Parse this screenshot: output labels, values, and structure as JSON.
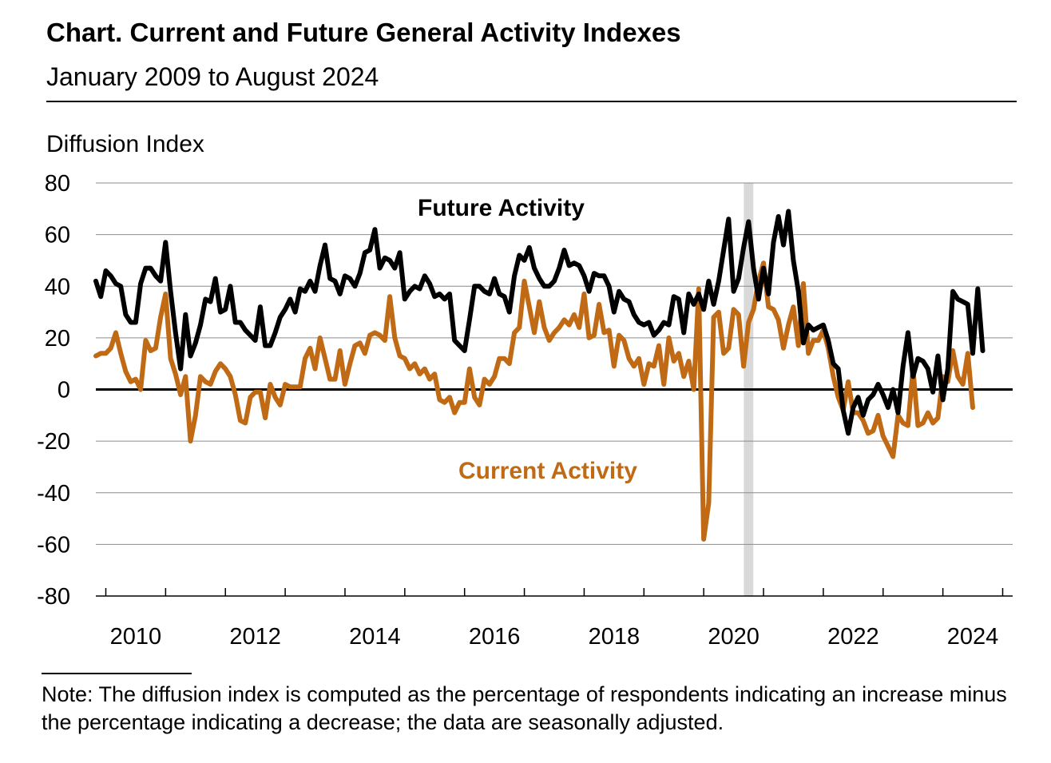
{
  "header": {
    "title": "Chart. Current and Future General Activity Indexes",
    "subtitle": "January 2009 to August 2024"
  },
  "note": "Note: The diffusion index is computed as the percentage of respondents indicating an increase minus the percentage indicating a decrease; the data are seasonally adjusted.",
  "colors": {
    "future": "#000000",
    "current": "#c06a15",
    "recession_band": "#d9d9d9",
    "grid": "#8c8c8c"
  },
  "chart_data": {
    "type": "line",
    "title": "Chart. Current and Future General Activity Indexes",
    "subtitle": "January 2009 to August 2024",
    "ylabel": "Diffusion Index",
    "xlabel": "",
    "ylim": [
      -80,
      80
    ],
    "yticks": [
      80,
      60,
      40,
      20,
      0,
      -20,
      -40,
      -60,
      -80
    ],
    "xlim": [
      2009.333,
      2024.667
    ],
    "xticks": [
      {
        "value": 2010,
        "label": "2010"
      },
      {
        "value": 2012,
        "label": "2012"
      },
      {
        "value": 2014,
        "label": "2014"
      },
      {
        "value": 2016,
        "label": "2016"
      },
      {
        "value": 2018,
        "label": "2018"
      },
      {
        "value": 2020,
        "label": "2020"
      },
      {
        "value": 2022,
        "label": "2022"
      },
      {
        "value": 2024,
        "label": "2024"
      }
    ],
    "x_start": 2009.333,
    "x_step_months": 1,
    "shaded_region": {
      "start": 2020.17,
      "end": 2020.33
    },
    "grid": true,
    "series": [
      {
        "name": "Future Activity",
        "label_text": "Future Activity",
        "color": "#000000",
        "values": [
          42,
          36,
          46,
          44,
          41,
          40,
          29,
          26,
          26,
          41,
          47,
          47,
          44,
          42,
          57,
          38,
          22,
          8,
          29,
          13,
          18,
          25,
          35,
          34,
          43,
          30,
          31,
          40,
          26,
          26,
          23,
          21,
          19,
          32,
          17,
          17,
          22,
          28,
          31,
          35,
          30,
          39,
          38,
          42,
          38,
          48,
          56,
          43,
          42,
          37,
          44,
          43,
          40,
          45,
          53,
          54,
          62,
          47,
          51,
          50,
          47,
          53,
          35,
          38,
          40,
          39,
          44,
          41,
          36,
          37,
          35,
          37,
          19,
          17,
          15,
          27,
          40,
          40,
          38,
          37,
          43,
          37,
          36,
          30,
          44,
          52,
          50,
          55,
          47,
          43,
          40,
          40,
          42,
          47,
          54,
          48,
          49,
          48,
          44,
          38,
          45,
          44,
          44,
          40,
          30,
          38,
          35,
          34,
          29,
          26,
          25,
          26,
          21,
          23,
          26,
          25,
          36,
          35,
          22,
          37,
          33,
          37,
          31,
          42,
          33,
          42,
          54,
          66,
          38,
          43,
          55,
          65,
          47,
          35,
          47,
          37,
          57,
          67,
          56,
          69,
          50,
          38,
          18,
          25,
          23,
          24,
          25,
          19,
          10,
          8,
          -8,
          -17,
          -7,
          -3,
          -10,
          -4,
          -2,
          2,
          -2,
          -7,
          0,
          -9,
          9,
          22,
          5,
          12,
          11,
          8,
          -1,
          13,
          -4,
          8,
          38,
          35,
          34,
          33,
          14,
          39,
          15
        ]
      },
      {
        "name": "Current Activity",
        "label_text": "Current Activity",
        "color": "#c06a15",
        "values": [
          13,
          14,
          14,
          16,
          22,
          14,
          7,
          3,
          4,
          0,
          19,
          15,
          16,
          28,
          37,
          12,
          6,
          -2,
          5,
          -20,
          -10,
          5,
          3,
          2,
          7,
          10,
          8,
          5,
          -2,
          -12,
          -13,
          -3,
          -1,
          -1,
          -11,
          2,
          -3,
          -6,
          2,
          1,
          1,
          1,
          12,
          16,
          8,
          20,
          12,
          4,
          4,
          15,
          2,
          10,
          17,
          18,
          14,
          21,
          22,
          21,
          19,
          36,
          20,
          13,
          12,
          8,
          10,
          6,
          8,
          4,
          6,
          -4,
          -5,
          -3,
          -9,
          -5,
          -5,
          8,
          -3,
          -6,
          4,
          2,
          5,
          12,
          12,
          10,
          22,
          24,
          42,
          32,
          22,
          34,
          24,
          19,
          22,
          24,
          27,
          25,
          29,
          24,
          37,
          20,
          21,
          33,
          22,
          23,
          9,
          21,
          19,
          12,
          9,
          12,
          2,
          10,
          9,
          17,
          2,
          20,
          11,
          14,
          5,
          11,
          0,
          39,
          -58,
          -44,
          28,
          30,
          14,
          16,
          31,
          29,
          9,
          26,
          31,
          42,
          49,
          32,
          31,
          27,
          16,
          25,
          32,
          17,
          41,
          14,
          19,
          19,
          23,
          16,
          5,
          -3,
          -8,
          3,
          -9,
          -9,
          -12,
          -17,
          -16,
          -10,
          -18,
          -22,
          -26,
          -10,
          -13,
          -14,
          8,
          -14,
          -13,
          -9,
          -13,
          -11,
          5,
          3,
          15,
          5,
          2,
          14,
          -7
        ]
      }
    ]
  }
}
